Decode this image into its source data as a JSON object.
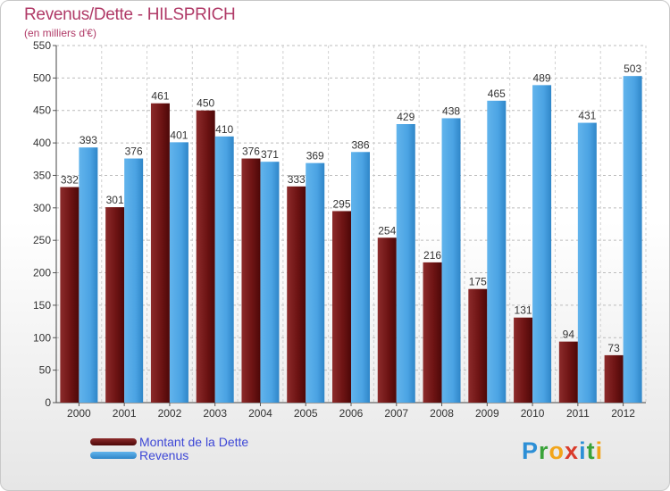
{
  "title": "Revenus/Dette - HILSPRICH",
  "subtitle": "(en milliers d'€)",
  "logo": {
    "letters": [
      {
        "ch": "P",
        "color": "#2c8fd6"
      },
      {
        "ch": "r",
        "color": "#3aa33a"
      },
      {
        "ch": "o",
        "color": "#f2a51a"
      },
      {
        "ch": "x",
        "color": "#d93b2b"
      },
      {
        "ch": "i",
        "color": "#2c8fd6"
      },
      {
        "ch": "t",
        "color": "#3aa33a"
      },
      {
        "ch": "i",
        "color": "#f2a51a"
      }
    ]
  },
  "chart_data": {
    "type": "bar",
    "categories": [
      "2000",
      "2001",
      "2002",
      "2003",
      "2004",
      "2005",
      "2006",
      "2007",
      "2008",
      "2009",
      "2010",
      "2011",
      "2012"
    ],
    "series": [
      {
        "name": "Montant de la Dette",
        "color": "#7a1c1c",
        "values": [
          332,
          301,
          461,
          450,
          376,
          333,
          295,
          254,
          216,
          175,
          131,
          94,
          73
        ]
      },
      {
        "name": "Revenus",
        "color": "#4ea6e6",
        "values": [
          393,
          376,
          401,
          410,
          371,
          369,
          386,
          429,
          438,
          465,
          489,
          431,
          503
        ]
      }
    ],
    "yticks": [
      0,
      50,
      100,
      150,
      200,
      250,
      300,
      350,
      400,
      450,
      500,
      550
    ],
    "ylim": [
      0,
      550
    ],
    "grid": true,
    "legend_position": "bottom-left"
  }
}
